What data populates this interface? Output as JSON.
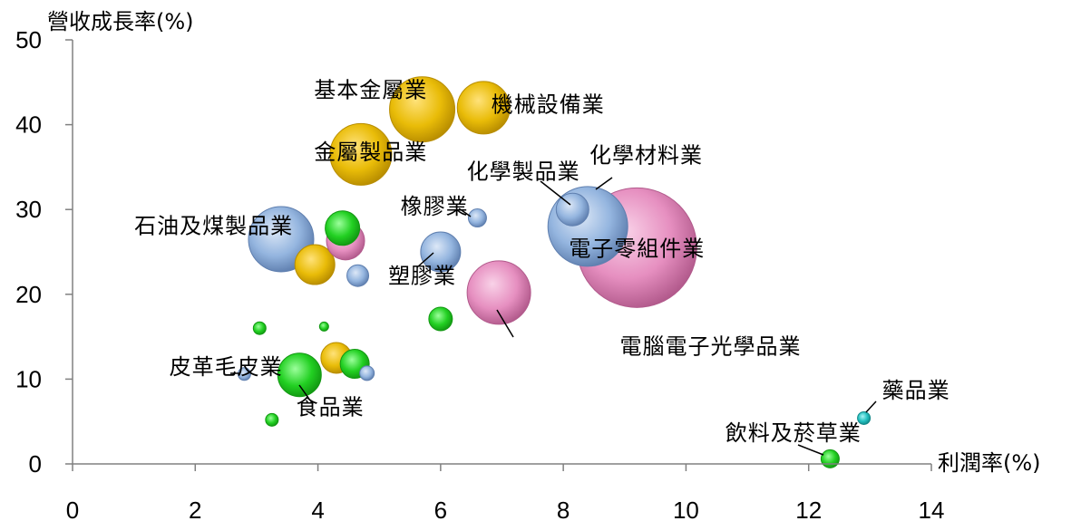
{
  "chart_data": {
    "type": "scatter",
    "subtype": "bubble",
    "xlabel": "利潤率(%)",
    "ylabel": "營收成長率(%)",
    "xlim": [
      0,
      14
    ],
    "ylim": [
      0,
      50
    ],
    "xticks": [
      "0",
      "2",
      "4",
      "6",
      "8",
      "10",
      "12",
      "14"
    ],
    "yticks": [
      "0",
      "10",
      "20",
      "30",
      "40",
      "50"
    ],
    "grid": false,
    "legend": "none",
    "colors": {
      "gold": "#E3B400",
      "blue": "#8FB0DC",
      "pink": "#E58EBF",
      "green": "#22CC22",
      "teal": "#22BBBB"
    },
    "points": [
      {
        "x": 3.4,
        "y": 26.5,
        "r": 36,
        "color": "blue",
        "label": "石油及煤製品業"
      },
      {
        "x": 4.4,
        "y": 27.8,
        "r": 19,
        "color": "green"
      },
      {
        "x": 4.45,
        "y": 26.3,
        "r": 21,
        "color": "pink"
      },
      {
        "x": 3.95,
        "y": 23.5,
        "r": 22,
        "color": "gold"
      },
      {
        "x": 4.65,
        "y": 22.2,
        "r": 12,
        "color": "blue"
      },
      {
        "x": 5.7,
        "y": 41.8,
        "r": 36,
        "color": "gold",
        "label": "基本金屬業"
      },
      {
        "x": 6.7,
        "y": 42.0,
        "r": 29,
        "color": "gold",
        "label": "機械設備業"
      },
      {
        "x": 4.7,
        "y": 36.5,
        "r": 34,
        "color": "gold",
        "label": "金屬製品業"
      },
      {
        "x": 6.0,
        "y": 25.0,
        "r": 22,
        "color": "blue",
        "label": "塑膠業"
      },
      {
        "x": 6.6,
        "y": 29.0,
        "r": 10,
        "color": "blue",
        "label": "橡膠業"
      },
      {
        "x": 8.4,
        "y": 28.0,
        "r": 44,
        "color": "blue",
        "label": "化學材料業"
      },
      {
        "x": 8.15,
        "y": 30.0,
        "r": 18,
        "color": "blue",
        "label": "化學製品業"
      },
      {
        "x": 9.2,
        "y": 25.5,
        "r": 66,
        "color": "pink",
        "label": "電子零組件業"
      },
      {
        "x": 6.95,
        "y": 20.2,
        "r": 35,
        "color": "pink",
        "label": "電腦電子光學品業"
      },
      {
        "x": 6.0,
        "y": 17.1,
        "r": 13,
        "color": "green"
      },
      {
        "x": 3.05,
        "y": 16.0,
        "r": 7,
        "color": "green"
      },
      {
        "x": 4.1,
        "y": 16.2,
        "r": 5,
        "color": "green"
      },
      {
        "x": 4.3,
        "y": 12.5,
        "r": 17,
        "color": "gold"
      },
      {
        "x": 4.6,
        "y": 11.8,
        "r": 16,
        "color": "green"
      },
      {
        "x": 4.8,
        "y": 10.7,
        "r": 8,
        "color": "blue"
      },
      {
        "x": 2.8,
        "y": 10.6,
        "r": 7,
        "color": "blue",
        "label": "皮革毛皮業"
      },
      {
        "x": 3.7,
        "y": 10.5,
        "r": 24,
        "color": "green",
        "label": "食品業"
      },
      {
        "x": 3.25,
        "y": 5.2,
        "r": 7,
        "color": "green"
      },
      {
        "x": 12.9,
        "y": 5.4,
        "r": 7,
        "color": "teal",
        "label": "藥品業"
      },
      {
        "x": 12.35,
        "y": 0.6,
        "r": 10,
        "color": "green",
        "label": "飲料及菸草業"
      }
    ],
    "label_placement": [
      {
        "label": "石油及煤製品業",
        "lx": 2.3,
        "ly": 27.2
      },
      {
        "label": "基本金屬業",
        "lx": 4.86,
        "ly": 43.2
      },
      {
        "label": "機械設備業",
        "lx": 7.75,
        "ly": 41.5
      },
      {
        "label": "金屬製品業",
        "lx": 4.86,
        "ly": 35.9
      },
      {
        "label": "化學製品業",
        "lx": 7.35,
        "ly": 33.6
      },
      {
        "label": "化學材料業",
        "lx": 9.35,
        "ly": 35.5
      },
      {
        "label": "橡膠業",
        "lx": 5.9,
        "ly": 29.5
      },
      {
        "label": "塑膠業",
        "lx": 5.7,
        "ly": 21.3
      },
      {
        "label": "電子零組件業",
        "lx": 9.2,
        "ly": 24.5
      },
      {
        "label": "電腦電子光學品業",
        "lx": 10.4,
        "ly": 13.0
      },
      {
        "label": "皮革毛皮業",
        "lx": 2.5,
        "ly": 10.6
      },
      {
        "label": "食品業",
        "lx": 4.2,
        "ly": 5.8
      },
      {
        "label": "藥品業",
        "lx": 13.75,
        "ly": 7.8
      },
      {
        "label": "飲料及菸草業",
        "lx": 11.75,
        "ly": 2.8
      }
    ]
  }
}
